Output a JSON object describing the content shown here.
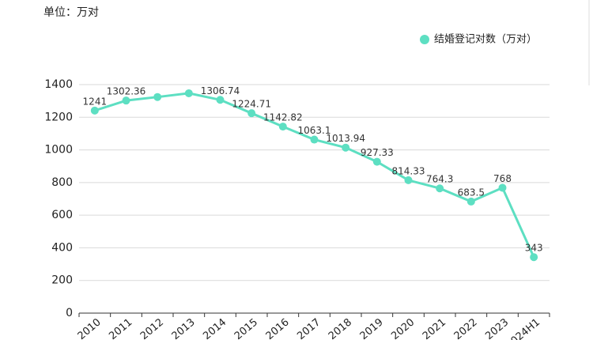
{
  "chart_data": {
    "type": "line",
    "subtitle": "单位：万对",
    "categories": [
      "2010",
      "2011",
      "2012",
      "2013",
      "2014",
      "2015",
      "2016",
      "2017",
      "2018",
      "2019",
      "2020",
      "2021",
      "2022",
      "2023",
      "2024H1"
    ],
    "series": [
      {
        "name": "结婚登记对数（万对）",
        "color": "#5ddfc2",
        "values": [
          1241,
          1302.36,
          1324,
          1347,
          1306.74,
          1224.71,
          1142.82,
          1063.1,
          1013.94,
          927.33,
          814.33,
          764.3,
          683.5,
          768,
          343
        ],
        "value_labels": [
          "1241",
          "1302.36",
          null,
          null,
          "1306.74",
          "1224.71",
          "1142.82",
          "1063.1",
          "1013.94",
          "927.33",
          "814.33",
          "764.3",
          "683.5",
          "768",
          "343"
        ]
      }
    ],
    "ylim": [
      0,
      1400
    ],
    "yticks": [
      0,
      200,
      400,
      600,
      800,
      1000,
      1200,
      1400
    ],
    "grid": true,
    "legend": "top-right"
  }
}
